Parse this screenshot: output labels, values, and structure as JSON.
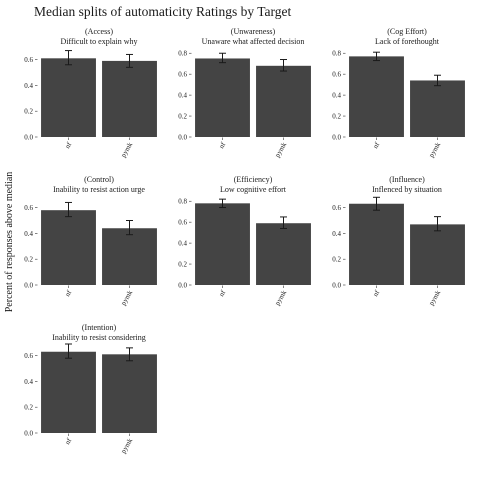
{
  "chart_data": {
    "type": "bar",
    "title": "Median splits of automaticity Ratings by Target",
    "ylabel": "Percent of responses above median",
    "categories": [
      "nf",
      "pymk"
    ],
    "bar_color": "#444444",
    "grid": false,
    "panels": [
      {
        "strip_line1": "(Access)",
        "strip_line2": "Difficult to explain why",
        "yticks": [
          "0.0",
          "0.2",
          "0.4",
          "0.6"
        ],
        "ytick_values": [
          0,
          0.2,
          0.4,
          0.6
        ],
        "ylim": [
          0,
          0.69
        ],
        "values": [
          0.61,
          0.59
        ],
        "err_low": [
          0.56,
          0.54
        ],
        "err_high": [
          0.67,
          0.64
        ]
      },
      {
        "strip_line1": "(Unwareness)",
        "strip_line2": "Unaware what affected decision",
        "yticks": [
          "0.0",
          "0.2",
          "0.4",
          "0.6",
          "0.8"
        ],
        "ytick_values": [
          0,
          0.2,
          0.4,
          0.6,
          0.8
        ],
        "ylim": [
          0,
          0.85
        ],
        "values": [
          0.75,
          0.68
        ],
        "err_low": [
          0.71,
          0.63
        ],
        "err_high": [
          0.8,
          0.74
        ]
      },
      {
        "strip_line1": "(Cog Effort)",
        "strip_line2": "Lack of forethought",
        "yticks": [
          "0.0",
          "0.2",
          "0.4",
          "0.6",
          "0.8"
        ],
        "ytick_values": [
          0,
          0.2,
          0.4,
          0.6,
          0.8
        ],
        "ylim": [
          0,
          0.85
        ],
        "values": [
          0.77,
          0.54
        ],
        "err_low": [
          0.73,
          0.49
        ],
        "err_high": [
          0.81,
          0.59
        ]
      },
      {
        "strip_line1": "(Control)",
        "strip_line2": "Inability to resist action urge",
        "yticks": [
          "0.0",
          "0.2",
          "0.4",
          "0.6"
        ],
        "ytick_values": [
          0,
          0.2,
          0.4,
          0.6
        ],
        "ylim": [
          0,
          0.69
        ],
        "values": [
          0.58,
          0.44
        ],
        "err_low": [
          0.53,
          0.39
        ],
        "err_high": [
          0.64,
          0.5
        ]
      },
      {
        "strip_line1": "(Efficiency)",
        "strip_line2": "Low cognitive effort",
        "yticks": [
          "0.0",
          "0.2",
          "0.4",
          "0.6",
          "0.8"
        ],
        "ytick_values": [
          0,
          0.2,
          0.4,
          0.6,
          0.8
        ],
        "ylim": [
          0,
          0.85
        ],
        "values": [
          0.78,
          0.59
        ],
        "err_low": [
          0.74,
          0.54
        ],
        "err_high": [
          0.82,
          0.65
        ]
      },
      {
        "strip_line1": "(Influence)",
        "strip_line2": "Inflenced by situation",
        "yticks": [
          "0.0",
          "0.2",
          "0.4",
          "0.6"
        ],
        "ytick_values": [
          0,
          0.2,
          0.4,
          0.6
        ],
        "ylim": [
          0,
          0.69
        ],
        "values": [
          0.63,
          0.47
        ],
        "err_low": [
          0.58,
          0.42
        ],
        "err_high": [
          0.68,
          0.53
        ]
      },
      {
        "strip_line1": "(Intention)",
        "strip_line2": "Inability to resist considering",
        "yticks": [
          "0.0",
          "0.2",
          "0.4",
          "0.6"
        ],
        "ytick_values": [
          0,
          0.2,
          0.4,
          0.6
        ],
        "ylim": [
          0,
          0.69
        ],
        "values": [
          0.63,
          0.61
        ],
        "err_low": [
          0.58,
          0.56
        ],
        "err_high": [
          0.69,
          0.66
        ]
      }
    ]
  }
}
